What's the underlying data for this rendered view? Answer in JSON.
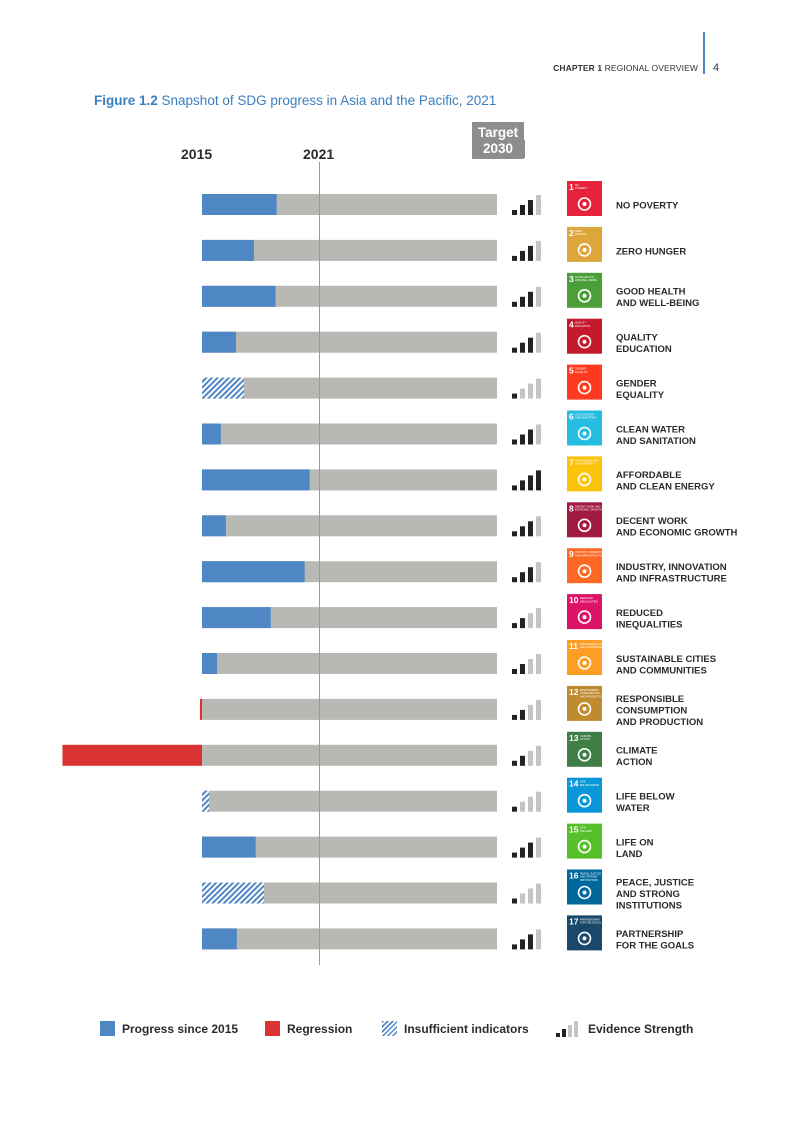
{
  "header": {
    "chapter_bold": "CHAPTER 1",
    "chapter_rest": " REGIONAL OVERVIEW",
    "page_number": "4"
  },
  "figure": {
    "label": "Figure 1.2",
    "title": " Snapshot of SDG progress in Asia and the Pacific, 2021"
  },
  "chart_data": {
    "type": "bar",
    "orientation": "horizontal",
    "title": "Snapshot of SDG progress in Asia and the Pacific, 2021",
    "axis_labels": {
      "start": "2015",
      "current": "2021",
      "target_line1": "Target",
      "target_line2": "2030"
    },
    "xlim_years": [
      2015,
      2030
    ],
    "series_meaning": "Progress since 2015 (share of distance to 2030 target, %)",
    "goals": [
      {
        "num": "1",
        "icon_text": "NO\nPOVERTY",
        "label": [
          "NO POVERTY"
        ],
        "color": "#e5243b",
        "progress": 25.3,
        "status": "progress",
        "evidence": 3
      },
      {
        "num": "2",
        "icon_text": "ZERO\nHUNGER",
        "label": [
          "ZERO HUNGER"
        ],
        "color": "#dda63a",
        "progress": 17.6,
        "status": "progress",
        "evidence": 3
      },
      {
        "num": "3",
        "icon_text": "GOOD HEALTH\nAND WELL-BEING",
        "label": [
          "GOOD HEALTH",
          "AND WELL-BEING"
        ],
        "color": "#4c9f38",
        "progress": 24.9,
        "status": "progress",
        "evidence": 3
      },
      {
        "num": "4",
        "icon_text": "QUALITY\nEDUCATION",
        "label": [
          "QUALITY",
          "EDUCATION"
        ],
        "color": "#c5192d",
        "progress": 11.5,
        "status": "progress",
        "evidence": 3
      },
      {
        "num": "5",
        "icon_text": "GENDER\nEQUALITY",
        "label": [
          "GENDER",
          "EQUALITY"
        ],
        "color": "#ff3a21",
        "progress": 14.2,
        "status": "insufficient",
        "evidence": 1
      },
      {
        "num": "6",
        "icon_text": "CLEAN WATER\nAND SANITATION",
        "label": [
          "CLEAN WATER",
          "AND SANITATION"
        ],
        "color": "#26bde2",
        "progress": 6.4,
        "status": "progress",
        "evidence": 3
      },
      {
        "num": "7",
        "icon_text": "AFFORDABLE AND\nCLEAN ENERGY",
        "label": [
          "AFFORDABLE",
          "AND CLEAN ENERGY"
        ],
        "color": "#fcc30b",
        "progress": 36.5,
        "status": "progress",
        "evidence": 4
      },
      {
        "num": "8",
        "icon_text": "DECENT WORK AND\nECONOMIC GROWTH",
        "label": [
          "DECENT WORK",
          "AND ECONOMIC GROWTH"
        ],
        "color": "#a21942",
        "progress": 8.1,
        "status": "progress",
        "evidence": 3
      },
      {
        "num": "9",
        "icon_text": "INDUSTRY, INNOVATION\nAND INFRASTRUCTURE",
        "label": [
          "INDUSTRY, INNOVATION",
          "AND INFRASTRUCTURE"
        ],
        "color": "#fd6925",
        "progress": 34.8,
        "status": "progress",
        "evidence": 3
      },
      {
        "num": "10",
        "icon_text": "REDUCED\nINEQUALITIES",
        "label": [
          "REDUCED",
          "INEQUALITIES"
        ],
        "color": "#dd1367",
        "progress": 23.3,
        "status": "progress",
        "evidence": 2
      },
      {
        "num": "11",
        "icon_text": "SUSTAINABLE CITIES\nAND COMMUNITIES",
        "label": [
          "SUSTAINABLE CITIES",
          "AND COMMUNITIES"
        ],
        "color": "#fd9d24",
        "progress": 5.1,
        "status": "progress",
        "evidence": 2
      },
      {
        "num": "12",
        "icon_text": "RESPONSIBLE\nCONSUMPTION\nAND PRODUCTION",
        "label": [
          "RESPONSIBLE",
          "CONSUMPTION",
          "AND PRODUCTION"
        ],
        "color": "#bf8b2e",
        "progress": -0.7,
        "status": "regression",
        "evidence": 2
      },
      {
        "num": "13",
        "icon_text": "CLIMATE\nACTION",
        "label": [
          "CLIMATE",
          "ACTION"
        ],
        "color": "#3f7e44",
        "progress": -47.3,
        "status": "regression",
        "evidence": 2
      },
      {
        "num": "14",
        "icon_text": "LIFE\nBELOW WATER",
        "label": [
          "LIFE BELOW",
          "WATER"
        ],
        "color": "#0a97d9",
        "progress": 2.4,
        "status": "insufficient",
        "evidence": 1
      },
      {
        "num": "15",
        "icon_text": "LIFE\nON LAND",
        "label": [
          "LIFE ON",
          "LAND"
        ],
        "color": "#56c02b",
        "progress": 18.2,
        "status": "progress",
        "evidence": 3
      },
      {
        "num": "16",
        "icon_text": "PEACE, JUSTICE\nAND STRONG\nINSTITUTIONS",
        "label": [
          "PEACE, JUSTICE",
          "AND STRONG",
          "INSTITUTIONS"
        ],
        "color": "#00689d",
        "progress": 21.0,
        "status": "insufficient",
        "evidence": 1
      },
      {
        "num": "17",
        "icon_text": "PARTNERSHIPS\nFOR THE GOALS",
        "label": [
          "PARTNERSHIP",
          "FOR THE GOALS"
        ],
        "color": "#19486a",
        "progress": 11.8,
        "status": "progress",
        "evidence": 3
      }
    ],
    "colors": {
      "progress": "#4f87c4",
      "regression": "#d93433",
      "remaining": "#b8b8b4",
      "evidence_on": "#222222",
      "evidence_off": "#c4c4c4"
    }
  },
  "legend": {
    "progress": "Progress since 2015",
    "regression": "Regression",
    "insufficient": "Insufficient indicators",
    "evidence": "Evidence Strength"
  }
}
